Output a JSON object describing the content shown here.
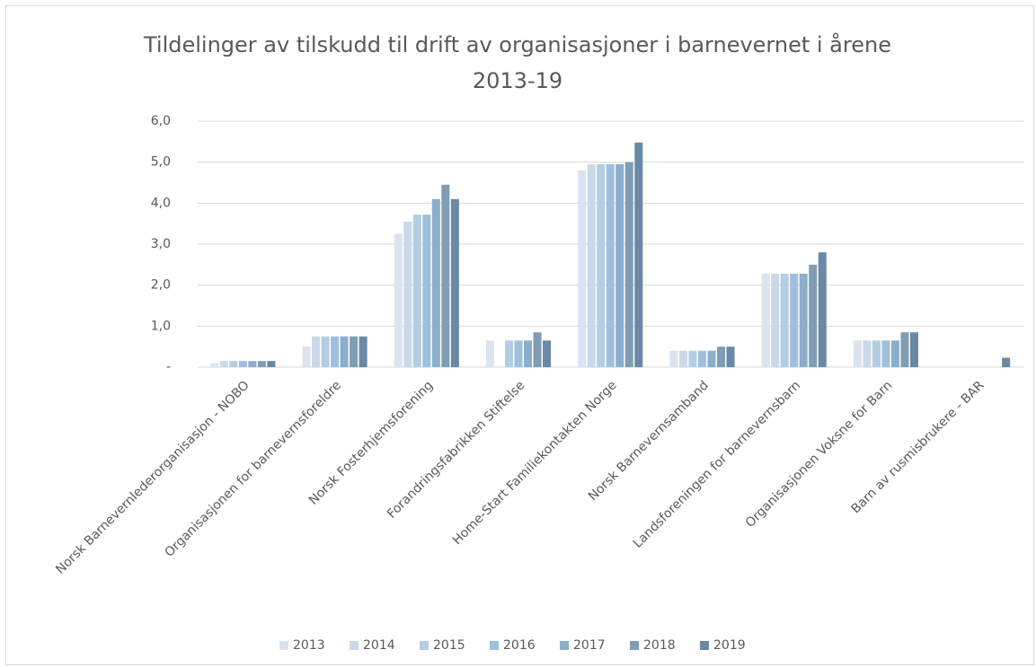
{
  "chart_data": {
    "type": "bar",
    "title": "Tildelinger av tilskudd til drift av organisasjoner i barnevernet i årene 2013-19",
    "categories": [
      "Norsk Barnevernlederorganisasjon - NOBO",
      "Organisasjonen for barnevernsforeldre",
      "Norsk Fosterhjemsforening",
      "Forandringsfabrikken Stiftelse",
      "Home-Start Familiekontakten Norge",
      "Norsk Barnevernsamband",
      "Landsforeningen for barnevernsbarn",
      "Organisasjonen Voksne for Barn",
      "Barn av rusmisbrukere - BAR"
    ],
    "series": [
      {
        "name": "2013",
        "color": "#dae3ef",
        "values": [
          0.1,
          0.5,
          3.25,
          0.65,
          4.8,
          0.4,
          2.28,
          0.65,
          0
        ]
      },
      {
        "name": "2014",
        "color": "#c9d9ea",
        "values": [
          0.15,
          0.75,
          3.55,
          0,
          4.95,
          0.4,
          2.28,
          0.65,
          0
        ]
      },
      {
        "name": "2015",
        "color": "#b4cde3",
        "values": [
          0.15,
          0.75,
          3.72,
          0.65,
          4.95,
          0.4,
          2.28,
          0.65,
          0
        ]
      },
      {
        "name": "2016",
        "color": "#9fc0dc",
        "values": [
          0.15,
          0.75,
          3.72,
          0.65,
          4.95,
          0.4,
          2.28,
          0.65,
          0
        ]
      },
      {
        "name": "2017",
        "color": "#8aaecb",
        "values": [
          0.15,
          0.75,
          4.1,
          0.65,
          4.95,
          0.4,
          2.28,
          0.65,
          0
        ]
      },
      {
        "name": "2018",
        "color": "#7f9db5",
        "values": [
          0.15,
          0.75,
          4.45,
          0.85,
          5.0,
          0.5,
          2.5,
          0.85,
          0
        ]
      },
      {
        "name": "2019",
        "color": "#6a89a4",
        "values": [
          0.15,
          0.75,
          4.1,
          0.65,
          5.48,
          0.5,
          2.8,
          0.85,
          0.23
        ]
      }
    ],
    "ylim": [
      0,
      6
    ],
    "yticks": [
      {
        "value": 0,
        "label": "-"
      },
      {
        "value": 1,
        "label": "1,0"
      },
      {
        "value": 2,
        "label": "2,0"
      },
      {
        "value": 3,
        "label": "3,0"
      },
      {
        "value": 4,
        "label": "4,0"
      },
      {
        "value": 5,
        "label": "5,0"
      },
      {
        "value": 6,
        "label": "6,0"
      }
    ],
    "grid": true,
    "legend": "bottom"
  }
}
